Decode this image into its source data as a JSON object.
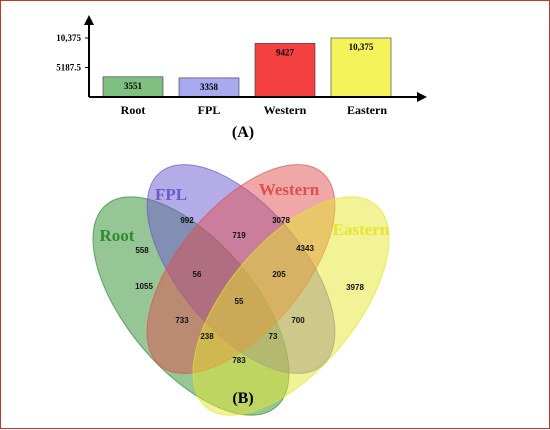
{
  "chart_data": [
    {
      "type": "bar",
      "panel_label": "(A)",
      "categories": [
        "Root",
        "FPL",
        "Western",
        "Eastern"
      ],
      "values": [
        3551,
        3358,
        9427,
        10375
      ],
      "value_labels": [
        "3551",
        "3358",
        "9427",
        "10,375"
      ],
      "yticks": [
        5187.5,
        10375
      ],
      "ytick_labels": [
        "5187.5",
        "10,375"
      ],
      "ylim": [
        0,
        10375
      ],
      "colors": [
        "#7fbf7f",
        "#a9a9ef",
        "#f44040",
        "#f4f45a"
      ],
      "grid": false
    },
    {
      "type": "venn",
      "panel_label": "(B)",
      "sets": [
        {
          "name": "Root",
          "color": "#2e8b2e"
        },
        {
          "name": "FPL",
          "color": "#6a5acd"
        },
        {
          "name": "Western",
          "color": "#e05050"
        },
        {
          "name": "Eastern",
          "color": "#e6e62e"
        }
      ],
      "regions": [
        {
          "sets": [
            "FPL"
          ],
          "label": "992"
        },
        {
          "sets": [
            "Western"
          ],
          "label": "3078"
        },
        {
          "sets": [
            "Root",
            "FPL"
          ],
          "label": "558"
        },
        {
          "sets": [
            "FPL",
            "Western"
          ],
          "label": "719"
        },
        {
          "sets": [
            "Western",
            "Eastern"
          ],
          "label": "4343"
        },
        {
          "sets": [
            "Root"
          ],
          "label": "1055"
        },
        {
          "sets": [
            "Root",
            "FPL",
            "Western"
          ],
          "label": "56"
        },
        {
          "sets": [
            "FPL",
            "Western",
            "Eastern"
          ],
          "label": "205"
        },
        {
          "sets": [
            "Eastern"
          ],
          "label": "3978"
        },
        {
          "sets": [
            "Root",
            "FPL",
            "Western",
            "Eastern"
          ],
          "label": "55"
        },
        {
          "sets": [
            "Root",
            "Western"
          ],
          "label": "733"
        },
        {
          "sets": [
            "FPL",
            "Eastern"
          ],
          "label": "700"
        },
        {
          "sets": [
            "Root",
            "Western",
            "Eastern"
          ],
          "label": "238"
        },
        {
          "sets": [
            "Root",
            "FPL",
            "Eastern"
          ],
          "label": "73"
        },
        {
          "sets": [
            "Root",
            "Eastern"
          ],
          "label": "783"
        }
      ]
    }
  ]
}
